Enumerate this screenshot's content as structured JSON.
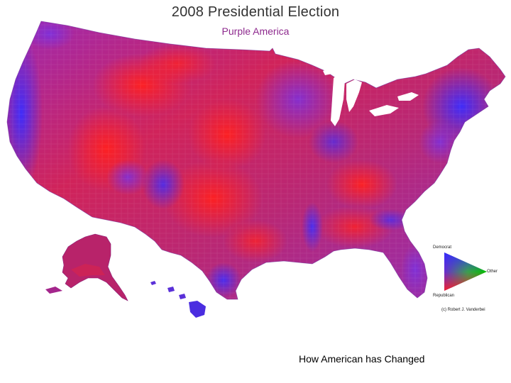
{
  "map": {
    "title": "2008 Presidential Election",
    "subtitle": "Purple America",
    "colors": {
      "democrat": "#2f2dff",
      "republican": "#ff1f1f",
      "other": "#00c000",
      "purple": "#8a2fc9",
      "magenta": "#c2288a",
      "subtitle": "#8e2a8e",
      "background": "#ffffff"
    },
    "legend": {
      "democrat_label": "Democrat",
      "republican_label": "Republican",
      "other_label": "Other"
    },
    "copyright": "(c) Robert J. Vanderbei"
  },
  "caption": "How American has Changed"
}
